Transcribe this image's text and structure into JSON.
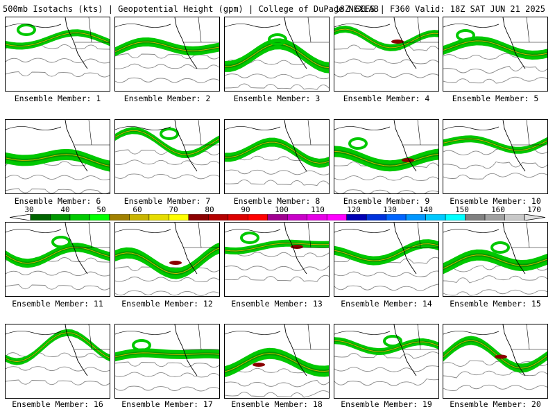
{
  "header": {
    "left": "500mb Isotachs (kts) | Geopotential Height (gpm) | College of DuPage NEXLAB",
    "right": "18Z GEFS | F360 Valid: 18Z SAT JUN 21 2025"
  },
  "colorbar": {
    "ticks": [
      "30",
      "40",
      "50",
      "60",
      "70",
      "80",
      "90",
      "100",
      "110",
      "120",
      "130",
      "140",
      "150",
      "160",
      "170"
    ],
    "colors": [
      "#006400",
      "#009600",
      "#00c800",
      "#00ff00",
      "#a08000",
      "#c8b400",
      "#e6dc00",
      "#ffff00",
      "#8b0000",
      "#b40000",
      "#dc0000",
      "#ff0000",
      "#a00090",
      "#c800c8",
      "#e600e6",
      "#ff00ff",
      "#0000b4",
      "#0032dc",
      "#0064ff",
      "#0096ff",
      "#00c8ff",
      "#00ffff",
      "#808080",
      "#a0a0a0",
      "#c8c8c8"
    ]
  },
  "members": [
    {
      "label": "Ensemble Member: 1"
    },
    {
      "label": "Ensemble Member: 2"
    },
    {
      "label": "Ensemble Member: 3"
    },
    {
      "label": "Ensemble Member: 4"
    },
    {
      "label": "Ensemble Member: 5"
    },
    {
      "label": "Ensemble Member: 6"
    },
    {
      "label": "Ensemble Member: 7"
    },
    {
      "label": "Ensemble Member: 8"
    },
    {
      "label": "Ensemble Member: 9"
    },
    {
      "label": "Ensemble Member: 10"
    },
    {
      "label": "Ensemble Member: 11"
    },
    {
      "label": "Ensemble Member: 12"
    },
    {
      "label": "Ensemble Member: 13"
    },
    {
      "label": "Ensemble Member: 14"
    },
    {
      "label": "Ensemble Member: 15"
    },
    {
      "label": "Ensemble Member: 16"
    },
    {
      "label": "Ensemble Member: 17"
    },
    {
      "label": "Ensemble Member: 18"
    },
    {
      "label": "Ensemble Member: 19"
    },
    {
      "label": "Ensemble Member: 20"
    }
  ]
}
